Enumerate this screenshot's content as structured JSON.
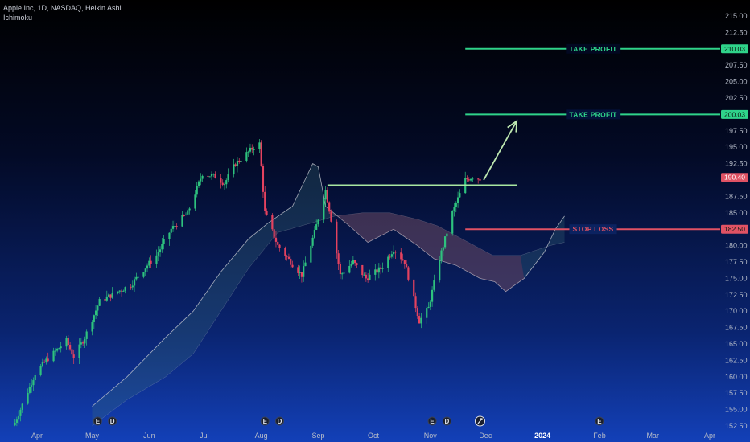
{
  "legend": {
    "title": "Apple Inc, 1D, NASDAQ, Heikin Ashi",
    "indicator": "Ichimoku"
  },
  "colors": {
    "up": "#2ec27e",
    "down": "#e5425f",
    "cloud_line": "#c9ccd2",
    "cloud_fill_bull": "#3b6f7a",
    "cloud_fill_bear": "#8a3a5a",
    "take_profit": "#2fd38a",
    "stop_loss": "#e05264",
    "resistance": "#a8e6a0",
    "arrow": "#bde7b0"
  },
  "chart_data": {
    "type": "candlestick",
    "symbol": "Apple Inc",
    "timeframe": "1D",
    "exchange": "NASDAQ",
    "style": "Heikin Ashi",
    "y_axis": {
      "min": 152.5,
      "max": 215.0,
      "ticks": [
        "152.50",
        "155.00",
        "157.50",
        "160.00",
        "162.50",
        "165.00",
        "167.50",
        "170.00",
        "172.50",
        "175.00",
        "177.50",
        "180.00",
        "182.50",
        "185.00",
        "187.50",
        "190.00",
        "192.50",
        "195.00",
        "197.50",
        "200.00",
        "202.50",
        "205.00",
        "207.50",
        "210.00",
        "212.50",
        "215.00"
      ]
    },
    "x_axis": {
      "ticks": [
        {
          "label": "Apr",
          "date": "2023-04-01",
          "bold": false
        },
        {
          "label": "May",
          "date": "2023-05-01",
          "bold": false
        },
        {
          "label": "Jun",
          "date": "2023-06-01",
          "bold": false
        },
        {
          "label": "Jul",
          "date": "2023-07-01",
          "bold": false
        },
        {
          "label": "Aug",
          "date": "2023-08-01",
          "bold": false
        },
        {
          "label": "Sep",
          "date": "2023-09-01",
          "bold": false
        },
        {
          "label": "Oct",
          "date": "2023-10-01",
          "bold": false
        },
        {
          "label": "Nov",
          "date": "2023-11-01",
          "bold": false
        },
        {
          "label": "Dec",
          "date": "2023-12-01",
          "bold": false
        },
        {
          "label": "2024",
          "date": "2024-01-01",
          "bold": true
        },
        {
          "label": "Feb",
          "date": "2024-02-01",
          "bold": false
        },
        {
          "label": "Mar",
          "date": "2024-03-01",
          "bold": false
        },
        {
          "label": "Apr",
          "date": "2024-04-01",
          "bold": false
        }
      ]
    },
    "price_path": [
      [
        "2023-03-20",
        153.0
      ],
      [
        "2023-03-31",
        160.5
      ],
      [
        "2023-04-06",
        162.5
      ],
      [
        "2023-04-17",
        165.5
      ],
      [
        "2023-04-21",
        163.0
      ],
      [
        "2023-04-27",
        166.0
      ],
      [
        "2023-05-05",
        171.5
      ],
      [
        "2023-05-15",
        173.0
      ],
      [
        "2023-05-22",
        174.0
      ],
      [
        "2023-05-31",
        177.0
      ],
      [
        "2023-06-05",
        178.5
      ],
      [
        "2023-06-13",
        182.5
      ],
      [
        "2023-06-22",
        185.0
      ],
      [
        "2023-06-30",
        191.0
      ],
      [
        "2023-07-07",
        190.5
      ],
      [
        "2023-07-12",
        189.5
      ],
      [
        "2023-07-18",
        192.5
      ],
      [
        "2023-07-28",
        195.0
      ],
      [
        "2023-07-31",
        195.5
      ],
      [
        "2023-08-03",
        185.0
      ],
      [
        "2023-08-10",
        180.0
      ],
      [
        "2023-08-17",
        177.5
      ],
      [
        "2023-08-23",
        175.5
      ],
      [
        "2023-08-30",
        182.0
      ],
      [
        "2023-09-05",
        188.5
      ],
      [
        "2023-09-08",
        184.0
      ],
      [
        "2023-09-13",
        175.5
      ],
      [
        "2023-09-20",
        177.5
      ],
      [
        "2023-09-27",
        175.0
      ],
      [
        "2023-10-05",
        176.5
      ],
      [
        "2023-10-12",
        179.5
      ],
      [
        "2023-10-18",
        177.5
      ],
      [
        "2023-10-26",
        168.5
      ],
      [
        "2023-10-31",
        170.5
      ],
      [
        "2023-11-06",
        178.0
      ],
      [
        "2023-11-13",
        185.0
      ],
      [
        "2023-11-20",
        190.0
      ],
      [
        "2023-11-24",
        190.5
      ],
      [
        "2023-11-28",
        190.2
      ]
    ],
    "ichimoku_cloud": {
      "span_a": [
        [
          "2023-05-01",
          155.5
        ],
        [
          "2023-05-20",
          160.0
        ],
        [
          "2023-06-10",
          166.0
        ],
        [
          "2023-06-25",
          170.0
        ],
        [
          "2023-07-10",
          176.0
        ],
        [
          "2023-07-25",
          181.0
        ],
        [
          "2023-08-05",
          183.5
        ],
        [
          "2023-08-18",
          186.0
        ],
        [
          "2023-08-29",
          192.5
        ],
        [
          "2023-09-01",
          192.0
        ],
        [
          "2023-09-05",
          186.0
        ],
        [
          "2023-09-18",
          183.0
        ],
        [
          "2023-09-28",
          180.5
        ],
        [
          "2023-10-12",
          182.5
        ],
        [
          "2023-10-25",
          180.0
        ],
        [
          "2023-11-03",
          178.0
        ],
        [
          "2023-11-15",
          177.0
        ],
        [
          "2023-11-28",
          175.0
        ],
        [
          "2023-12-06",
          174.5
        ],
        [
          "2023-12-12",
          173.0
        ],
        [
          "2023-12-22",
          175.0
        ],
        [
          "2024-01-02",
          179.0
        ],
        [
          "2024-01-08",
          182.5
        ],
        [
          "2024-01-13",
          184.5
        ]
      ],
      "span_b": [
        [
          "2023-05-01",
          152.5
        ],
        [
          "2023-05-20",
          156.5
        ],
        [
          "2023-06-10",
          160.0
        ],
        [
          "2023-06-25",
          163.5
        ],
        [
          "2023-07-10",
          170.0
        ],
        [
          "2023-07-25",
          176.5
        ],
        [
          "2023-08-10",
          182.0
        ],
        [
          "2023-08-29",
          183.5
        ],
        [
          "2023-09-10",
          184.5
        ],
        [
          "2023-09-25",
          185.0
        ],
        [
          "2023-10-10",
          185.0
        ],
        [
          "2023-10-25",
          184.0
        ],
        [
          "2023-11-05",
          183.0
        ],
        [
          "2023-11-15",
          181.5
        ],
        [
          "2023-11-25",
          180.0
        ],
        [
          "2023-12-05",
          178.5
        ],
        [
          "2023-12-20",
          178.5
        ],
        [
          "2024-01-05",
          180.0
        ],
        [
          "2024-01-13",
          180.5
        ]
      ]
    },
    "levels": [
      {
        "name": "take_profit_2",
        "label": "TAKE PROFIT",
        "price": 210.0,
        "price_label": "210.03",
        "from": "2023-11-20",
        "color_key": "take_profit"
      },
      {
        "name": "take_profit_1",
        "label": "TAKE PROFIT",
        "price": 200.0,
        "price_label": "200.03",
        "from": "2023-11-20",
        "color_key": "take_profit"
      },
      {
        "name": "stop_loss",
        "label": "STOP LOSS",
        "price": 182.5,
        "price_label": "182.50",
        "from": "2023-11-20",
        "color_key": "stop_loss"
      }
    ],
    "last_price": {
      "price": 190.4,
      "price_label": "190.40"
    },
    "resistance_line": {
      "from": "2023-09-06",
      "to": "2023-12-18",
      "price": 189.2
    },
    "projection_arrow": {
      "from": [
        "2023-11-30",
        190.0
      ],
      "to": [
        "2023-12-18",
        199.0
      ]
    },
    "events": [
      {
        "type": "earnings",
        "label": "E",
        "date": "2023-05-04"
      },
      {
        "type": "dividend",
        "label": "D",
        "date": "2023-05-12"
      },
      {
        "type": "earnings",
        "label": "E",
        "date": "2023-08-03"
      },
      {
        "type": "dividend",
        "label": "D",
        "date": "2023-08-11"
      },
      {
        "type": "earnings",
        "label": "E",
        "date": "2023-11-02"
      },
      {
        "type": "dividend",
        "label": "D",
        "date": "2023-11-10"
      },
      {
        "type": "split",
        "label": "",
        "date": "2023-11-28"
      },
      {
        "type": "earnings",
        "label": "E",
        "date": "2024-02-01"
      }
    ]
  }
}
